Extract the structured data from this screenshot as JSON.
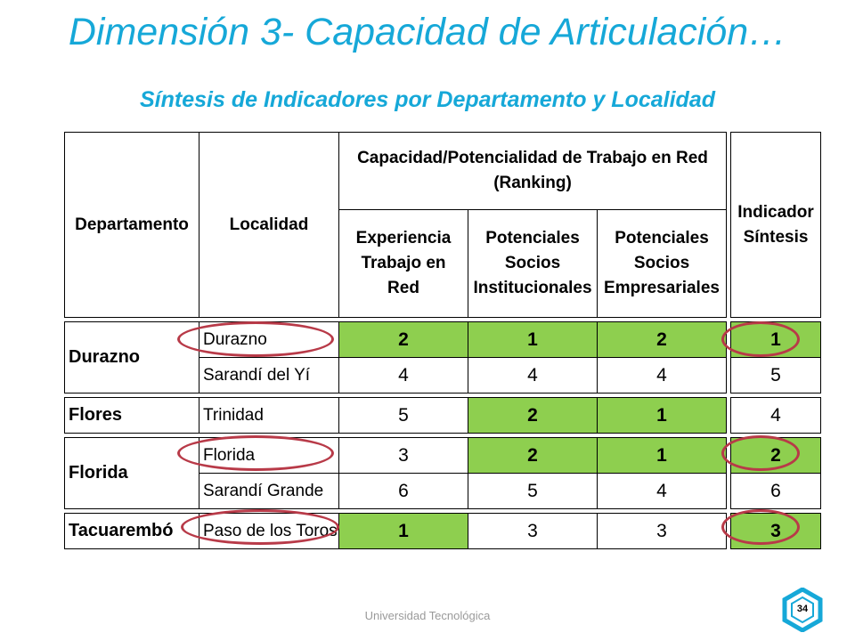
{
  "title": "Dimensión 3- Capacidad de Articulación…",
  "subtitle": "Síntesis de Indicadores por Departamento y Localidad",
  "table": {
    "headers": {
      "departamento": "Departamento",
      "localidad": "Localidad",
      "group": "Capacidad/Potencialidad de Trabajo en Red (Ranking)",
      "experiencia": "Experiencia Trabajo en Red",
      "institucionales": "Potenciales Socios Institucionales",
      "empresariales": "Potenciales Socios Empresariales",
      "indicador": "Indicador Síntesis"
    },
    "rows": [
      {
        "departamento": "Durazno",
        "localidad": "Durazno",
        "experiencia": "2",
        "institucionales": "1",
        "empresariales": "2",
        "indicador": "1"
      },
      {
        "departamento": "",
        "localidad": "Sarandí del Yí",
        "experiencia": "4",
        "institucionales": "4",
        "empresariales": "4",
        "indicador": "5"
      },
      {
        "departamento": "Flores",
        "localidad": "Trinidad",
        "experiencia": "5",
        "institucionales": "2",
        "empresariales": "1",
        "indicador": "4"
      },
      {
        "departamento": "Florida",
        "localidad": "Florida",
        "experiencia": "3",
        "institucionales": "2",
        "empresariales": "1",
        "indicador": "2"
      },
      {
        "departamento": "",
        "localidad": "Sarandí Grande",
        "experiencia": "6",
        "institucionales": "5",
        "empresariales": "4",
        "indicador": "6"
      },
      {
        "departamento": "Tacuarembó",
        "localidad": "Paso de los Toros",
        "experiencia": "1",
        "institucionales": "3",
        "empresariales": "3",
        "indicador": "3"
      }
    ]
  },
  "colors": {
    "title": "#16a8d8",
    "highlight": "#8ecf4f",
    "circle": "#b83a48",
    "footer": "#9a9a9a"
  },
  "footer": {
    "text": "Universidad Tecnológica",
    "page_number": "34",
    "logo_icon": "utec-hexagon-logo-icon"
  }
}
